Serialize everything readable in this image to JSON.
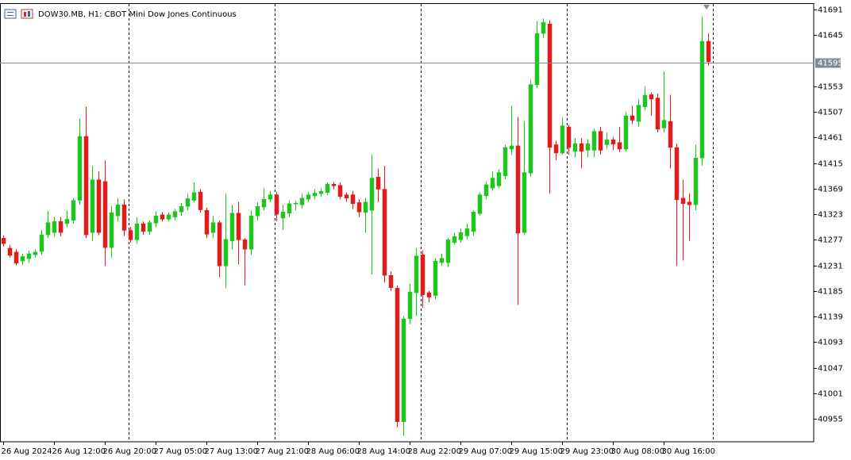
{
  "chart_data": {
    "type": "candlestick",
    "title": "DOW30.MB, H1:  CBOT Mini Dow Jones Continuous",
    "categories": [
      "26 Aug 2024",
      null,
      null,
      null,
      null,
      null,
      null,
      null,
      "26 Aug 12:00",
      null,
      null,
      null,
      null,
      null,
      null,
      null,
      "26 Aug 20:00",
      null,
      null,
      null,
      null,
      null,
      null,
      null,
      "27 Aug 05:00",
      null,
      null,
      null,
      null,
      null,
      null,
      null,
      "27 Aug 13:00",
      null,
      null,
      null,
      null,
      null,
      null,
      null,
      "27 Aug 21:00",
      null,
      null,
      null,
      null,
      null,
      null,
      null,
      "28 Aug 06:00",
      null,
      null,
      null,
      null,
      null,
      null,
      null,
      "28 Aug 14:00",
      null,
      null,
      null,
      null,
      null,
      null,
      null,
      "28 Aug 22:00",
      null,
      null,
      null,
      null,
      null,
      null,
      null,
      "29 Aug 07:00",
      null,
      null,
      null,
      null,
      null,
      null,
      null,
      "29 Aug 15:00",
      null,
      null,
      null,
      null,
      null,
      null,
      null,
      "29 Aug 23:00",
      null,
      null,
      null,
      null,
      null,
      null,
      null,
      "30 Aug 08:00",
      null,
      null,
      null,
      null,
      null,
      null,
      null,
      "30 Aug 16:00",
      null,
      null,
      null,
      null,
      null,
      null,
      null
    ],
    "open": [
      41280,
      41262,
      41255,
      41239,
      41243,
      41250,
      41256,
      41286,
      41290,
      41310,
      41306,
      41312,
      41348,
      41463,
      41290,
      41385,
      41382,
      41263,
      41320,
      41340,
      41294,
      41277,
      41306,
      41292,
      41307,
      41322,
      41314,
      41318,
      41327,
      41337,
      41348,
      41363,
      41330,
      41290,
      41308,
      41230,
      41275,
      41325,
      41277,
      41260,
      41320,
      41336,
      41350,
      41358,
      41316,
      41325,
      41342,
      41340,
      41350,
      41356,
      41360,
      41362,
      41377,
      41375,
      41358,
      41358,
      41344,
      41326,
      41330,
      41390,
      41368,
      41213,
      41190,
      40950,
      41135,
      41182,
      41250,
      41182,
      41177,
      41236,
      41236,
      41272,
      41277,
      41284,
      41292,
      41324,
      41356,
      41370,
      41374,
      41392,
      41440,
      41446,
      41290,
      41397,
      41556,
      41648,
      41665,
      41448,
      41433,
      41480,
      41436,
      41450,
      41438,
      41438,
      41472,
      41448,
      41457,
      41452,
      41440,
      41500,
      41490,
      41516,
      41538,
      41532,
      41478,
      41490,
      41443,
      41352,
      41345,
      41340,
      41424,
      41634
    ],
    "high": [
      41285,
      41268,
      41260,
      41252,
      41258,
      41260,
      41295,
      41329,
      41318,
      41318,
      41330,
      41352,
      41495,
      41516,
      41410,
      41400,
      41420,
      41338,
      41352,
      41350,
      41300,
      41318,
      41310,
      41312,
      41328,
      41327,
      41326,
      41333,
      41343,
      41360,
      41380,
      41368,
      41335,
      41320,
      41312,
      41360,
      41340,
      41345,
      41280,
      41330,
      41345,
      41370,
      41365,
      41363,
      41340,
      41348,
      41347,
      41360,
      41363,
      41368,
      41370,
      41380,
      41381,
      41380,
      41362,
      41365,
      41350,
      41352,
      41430,
      41405,
      41410,
      41220,
      41195,
      41140,
      41198,
      41262,
      41258,
      41185,
      41244,
      41252,
      41280,
      41290,
      41297,
      41306,
      41330,
      41362,
      41382,
      41400,
      41404,
      41448,
      41518,
      41498,
      41490,
      41565,
      41670,
      41675,
      41672,
      41455,
      41497,
      41484,
      41460,
      41460,
      41458,
      41477,
      41480,
      41470,
      41462,
      41480,
      41507,
      41518,
      41530,
      41553,
      41542,
      41540,
      41580,
      41538,
      41450,
      41385,
      41360,
      41448,
      41678,
      41648
    ],
    "low": [
      41265,
      41245,
      41231,
      41232,
      41236,
      41245,
      41250,
      41280,
      41282,
      41283,
      41300,
      41306,
      41340,
      41280,
      41275,
      41285,
      41230,
      41245,
      41310,
      41284,
      41272,
      41270,
      41286,
      41286,
      41300,
      41310,
      41310,
      41312,
      41320,
      41330,
      41344,
      41326,
      41280,
      41280,
      41210,
      41190,
      41260,
      41233,
      41195,
      41250,
      41312,
      41330,
      41345,
      41310,
      41295,
      41318,
      41330,
      41333,
      41345,
      41350,
      41354,
      41357,
      41368,
      41350,
      41345,
      41332,
      41318,
      41290,
      41215,
      41345,
      41200,
      41185,
      40940,
      40925,
      41125,
      41140,
      41155,
      41165,
      41170,
      41230,
      41228,
      41268,
      41272,
      41278,
      41284,
      41320,
      41350,
      41365,
      41370,
      41386,
      41430,
      41160,
      41285,
      41390,
      41550,
      41640,
      41360,
      41420,
      41430,
      41430,
      41425,
      41406,
      41425,
      41425,
      41430,
      41440,
      41438,
      41435,
      41436,
      41485,
      41480,
      41510,
      41500,
      41470,
      41470,
      41405,
      41230,
      41240,
      41275,
      41330,
      41410,
      41590
    ],
    "close": [
      41270,
      41249,
      41235,
      41247,
      41252,
      41255,
      41286,
      41308,
      41310,
      41290,
      41314,
      41348,
      41463,
      41286,
      41385,
      41290,
      41263,
      41326,
      41340,
      41294,
      41277,
      41306,
      41292,
      41308,
      41320,
      41314,
      41322,
      41328,
      41337,
      41351,
      41362,
      41331,
      41287,
      41308,
      41230,
      41278,
      41325,
      41277,
      41260,
      41320,
      41337,
      41350,
      41358,
      41323,
      41327,
      41342,
      41343,
      41352,
      41358,
      41361,
      41364,
      41377,
      41374,
      41355,
      41352,
      41342,
      41327,
      41345,
      41388,
      41368,
      41213,
      41191,
      40950,
      41135,
      41183,
      41248,
      41178,
      41174,
      41239,
      41244,
      41277,
      41283,
      41290,
      41297,
      41327,
      41358,
      41376,
      41388,
      41398,
      41443,
      41446,
      41289,
      41398,
      41556,
      41648,
      41668,
      41443,
      41433,
      41482,
      41443,
      41450,
      41436,
      41450,
      41472,
      41438,
      41457,
      41449,
      41440,
      41500,
      41492,
      41519,
      41537,
      41530,
      41476,
      41492,
      41443,
      41349,
      41342,
      41340,
      41424,
      41634,
      41597
    ],
    "up_color": "#1fc41f",
    "down_color": "#e01b1b",
    "last_price": 41595,
    "last_price_color": "#7d8c9c",
    "ylim": [
      40914,
      41701
    ],
    "yticks": [
      41691,
      41645,
      41553,
      41507,
      41461,
      41415,
      41369,
      41323,
      41277,
      41231,
      41185,
      41139,
      41093,
      41047,
      41001,
      40955
    ]
  }
}
